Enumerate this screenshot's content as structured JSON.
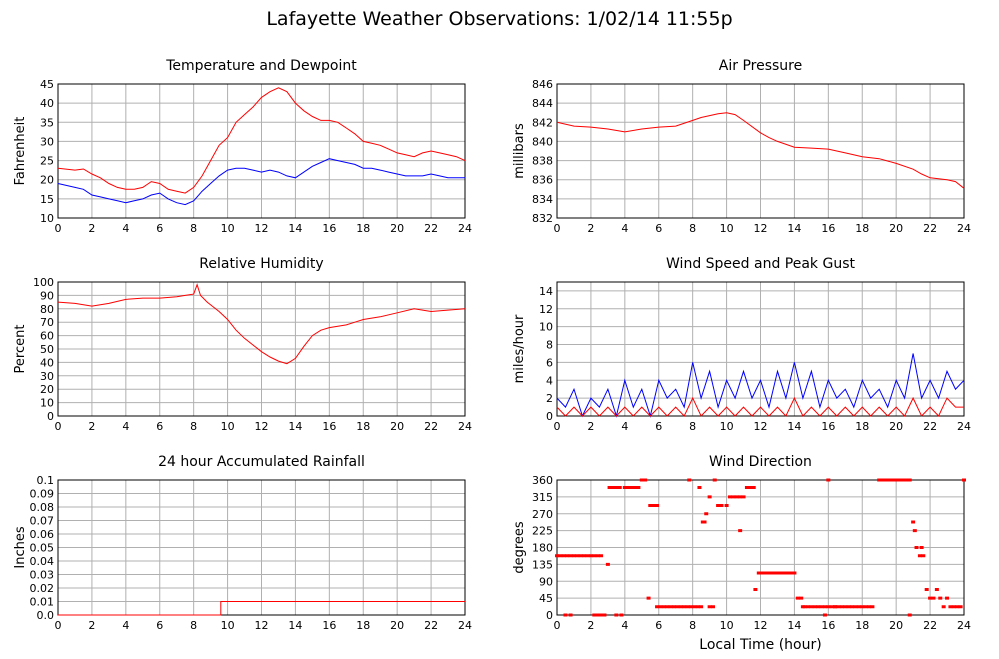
{
  "page": {
    "title": "Lafayette Weather Observations: 1/02/14 11:55p"
  },
  "colors": {
    "grid": "#b0b0b0",
    "red": "#ff0000",
    "blue": "#0000ff",
    "axis": "#000000"
  },
  "chart_data": [
    {
      "id": "temp",
      "type": "line",
      "title": "Temperature and Dewpoint",
      "xlabel": "",
      "ylabel": "Fahrenheit",
      "xlim": [
        0,
        24
      ],
      "ylim": [
        10,
        45
      ],
      "xticks": [
        0,
        2,
        4,
        6,
        8,
        10,
        12,
        14,
        16,
        18,
        20,
        22,
        24
      ],
      "yticks": [
        10,
        15,
        20,
        25,
        30,
        35,
        40,
        45
      ],
      "series": [
        {
          "color": "red",
          "x": [
            0,
            1,
            1.5,
            2,
            2.5,
            3,
            3.5,
            4,
            4.5,
            5,
            5.5,
            6,
            6.5,
            7,
            7.5,
            8,
            8.5,
            9,
            9.5,
            10,
            10.5,
            11,
            11.5,
            12,
            12.5,
            13,
            13.5,
            14,
            14.5,
            15,
            15.5,
            16,
            16.5,
            17,
            17.5,
            18,
            18.5,
            19,
            19.5,
            20,
            20.5,
            21,
            21.5,
            22,
            22.5,
            23,
            23.5,
            24
          ],
          "y": [
            23,
            22.5,
            22.8,
            21.5,
            20.5,
            19,
            18,
            17.5,
            17.5,
            18,
            19.5,
            19,
            17.5,
            17,
            16.5,
            18,
            21,
            25,
            29,
            31,
            35,
            37,
            39,
            41.5,
            43,
            44,
            43,
            40,
            38,
            36.5,
            35.5,
            35.5,
            35,
            33.5,
            32,
            30,
            29.5,
            29,
            28,
            27,
            26.5,
            26,
            27,
            27.5,
            27,
            26.5,
            26,
            25
          ]
        },
        {
          "color": "blue",
          "x": [
            0,
            1,
            1.5,
            2,
            2.5,
            3,
            3.5,
            4,
            4.5,
            5,
            5.5,
            6,
            6.5,
            7,
            7.5,
            8,
            8.5,
            9,
            9.5,
            10,
            10.5,
            11,
            11.5,
            12,
            12.5,
            13,
            13.5,
            14,
            14.5,
            15,
            15.5,
            16,
            16.5,
            17,
            17.5,
            18,
            18.5,
            19,
            19.5,
            20,
            20.5,
            21,
            21.5,
            22,
            22.5,
            23,
            23.5,
            24
          ],
          "y": [
            19,
            18,
            17.5,
            16,
            15.5,
            15,
            14.5,
            14,
            14.5,
            15,
            16,
            16.5,
            15,
            14,
            13.5,
            14.5,
            17,
            19,
            21,
            22.5,
            23,
            23,
            22.5,
            22,
            22.5,
            22,
            21,
            20.5,
            22,
            23.5,
            24.5,
            25.5,
            25,
            24.5,
            24,
            23,
            23,
            22.5,
            22,
            21.5,
            21,
            21,
            21,
            21.5,
            21,
            20.5,
            20.5,
            20.5
          ]
        }
      ]
    },
    {
      "id": "pressure",
      "type": "line",
      "title": "Air Pressure",
      "xlabel": "",
      "ylabel": "millibars",
      "xlim": [
        0,
        24
      ],
      "ylim": [
        832,
        846
      ],
      "xticks": [
        0,
        2,
        4,
        6,
        8,
        10,
        12,
        14,
        16,
        18,
        20,
        22,
        24
      ],
      "yticks": [
        832,
        834,
        836,
        838,
        840,
        842,
        844,
        846
      ],
      "series": [
        {
          "color": "red",
          "x": [
            0,
            1,
            2,
            3,
            4,
            5,
            6,
            7,
            8,
            8.5,
            9,
            9.5,
            10,
            10.5,
            11,
            12,
            12.5,
            13,
            14,
            15,
            16,
            17,
            18,
            19,
            20,
            21,
            21.5,
            22,
            23,
            23.5,
            24
          ],
          "y": [
            842,
            841.6,
            841.5,
            841.3,
            841,
            841.3,
            841.5,
            841.6,
            842.2,
            842.5,
            842.7,
            842.9,
            843,
            842.8,
            842.2,
            840.9,
            840.4,
            840,
            839.4,
            839.3,
            839.2,
            838.8,
            838.4,
            838.2,
            837.7,
            837.1,
            836.6,
            836.2,
            836,
            835.8,
            835.1
          ]
        }
      ]
    },
    {
      "id": "humidity",
      "type": "line",
      "title": "Relative Humidity",
      "xlabel": "",
      "ylabel": "Percent",
      "xlim": [
        0,
        24
      ],
      "ylim": [
        0,
        100
      ],
      "xticks": [
        0,
        2,
        4,
        6,
        8,
        10,
        12,
        14,
        16,
        18,
        20,
        22,
        24
      ],
      "yticks": [
        0,
        10,
        20,
        30,
        40,
        50,
        60,
        70,
        80,
        90,
        100
      ],
      "series": [
        {
          "color": "red",
          "x": [
            0,
            1,
            2,
            3,
            4,
            5,
            6,
            7,
            7.5,
            8,
            8.2,
            8.4,
            8.8,
            9.5,
            10,
            10.5,
            11,
            11.5,
            12,
            12.5,
            13,
            13.5,
            14,
            14.5,
            15,
            15.5,
            16,
            16.5,
            17,
            17.5,
            18,
            19,
            20,
            21,
            21.5,
            22,
            23,
            24
          ],
          "y": [
            85,
            84,
            82,
            84,
            87,
            88,
            88,
            89,
            90,
            91,
            98,
            90,
            85,
            78,
            72,
            64,
            58,
            53,
            48,
            44,
            41,
            39,
            43,
            52,
            60,
            64,
            66,
            67,
            68,
            70,
            72,
            74,
            77,
            80,
            79,
            78,
            79,
            80
          ]
        }
      ]
    },
    {
      "id": "wind",
      "type": "line",
      "title": "Wind Speed and Peak Gust",
      "xlabel": "",
      "ylabel": "miles/hour",
      "xlim": [
        0,
        24
      ],
      "ylim": [
        0,
        15
      ],
      "xticks": [
        0,
        2,
        4,
        6,
        8,
        10,
        12,
        14,
        16,
        18,
        20,
        22,
        24
      ],
      "yticks": [
        0,
        2,
        4,
        6,
        8,
        10,
        12,
        14
      ],
      "series": [
        {
          "color": "blue",
          "x": [
            0,
            0.5,
            1,
            1.5,
            2,
            2.5,
            3,
            3.5,
            4,
            4.5,
            5,
            5.5,
            6,
            6.5,
            7,
            7.5,
            8,
            8.5,
            9,
            9.5,
            10,
            10.5,
            11,
            11.5,
            12,
            12.5,
            13,
            13.5,
            14,
            14.5,
            15,
            15.5,
            16,
            16.5,
            17,
            17.5,
            18,
            18.5,
            19,
            19.5,
            20,
            20.5,
            21,
            21.5,
            22,
            22.5,
            23,
            23.5,
            24
          ],
          "y": [
            2,
            1,
            3,
            0,
            2,
            1,
            3,
            0,
            4,
            1,
            3,
            0,
            4,
            2,
            3,
            1,
            6,
            2,
            5,
            1,
            4,
            2,
            5,
            2,
            4,
            1,
            5,
            2,
            6,
            2,
            5,
            1,
            4,
            2,
            3,
            1,
            4,
            2,
            3,
            1,
            4,
            2,
            7,
            2,
            4,
            2,
            5,
            3,
            4
          ]
        },
        {
          "color": "red",
          "x": [
            0,
            0.5,
            1,
            1.5,
            2,
            2.5,
            3,
            3.5,
            4,
            4.5,
            5,
            5.5,
            6,
            6.5,
            7,
            7.5,
            8,
            8.5,
            9,
            9.5,
            10,
            10.5,
            11,
            11.5,
            12,
            12.5,
            13,
            13.5,
            14,
            14.5,
            15,
            15.5,
            16,
            16.5,
            17,
            17.5,
            18,
            18.5,
            19,
            19.5,
            20,
            20.5,
            21,
            21.5,
            22,
            22.5,
            23,
            23.5,
            24
          ],
          "y": [
            1,
            0,
            1,
            0,
            1,
            0,
            1,
            0,
            1,
            0,
            1,
            0,
            1,
            0,
            1,
            0,
            2,
            0,
            1,
            0,
            1,
            0,
            1,
            0,
            1,
            0,
            1,
            0,
            2,
            0,
            1,
            0,
            1,
            0,
            1,
            0,
            1,
            0,
            1,
            0,
            1,
            0,
            2,
            0,
            1,
            0,
            2,
            1,
            1
          ]
        }
      ]
    },
    {
      "id": "rain",
      "type": "line",
      "title": "24 hour Accumulated Rainfall",
      "xlabel": "",
      "ylabel": "Inches",
      "xlim": [
        0,
        24
      ],
      "ylim": [
        0,
        0.1
      ],
      "xticks": [
        0,
        2,
        4,
        6,
        8,
        10,
        12,
        14,
        16,
        18,
        20,
        22,
        24
      ],
      "yticks": [
        0.0,
        0.01,
        0.02,
        0.03,
        0.04,
        0.05,
        0.06,
        0.07,
        0.08,
        0.09,
        0.1
      ],
      "yticklabels": [
        "0.0",
        "0.01",
        "0.02",
        "0.03",
        "0.04",
        "0.05",
        "0.06",
        "0.07",
        "0.08",
        "0.09",
        "0.1"
      ],
      "series": [
        {
          "color": "red",
          "x": [
            0,
            9.6,
            9.6,
            24
          ],
          "y": [
            0,
            0,
            0.01,
            0.01
          ]
        }
      ]
    },
    {
      "id": "direction",
      "type": "scatter",
      "title": "Wind Direction",
      "xlabel": "Local Time (hour)",
      "ylabel": "degrees",
      "xlim": [
        0,
        24
      ],
      "ylim": [
        0,
        360
      ],
      "xticks": [
        0,
        2,
        4,
        6,
        8,
        10,
        12,
        14,
        16,
        18,
        20,
        22,
        24
      ],
      "yticks": [
        0,
        45,
        90,
        135,
        180,
        225,
        270,
        315,
        360
      ],
      "series": [
        {
          "color": "red",
          "x": [
            0,
            0.2,
            0.4,
            0.6,
            0.8,
            1,
            1.2,
            1.4,
            1.6,
            1.8,
            0.5,
            0.8,
            2,
            2.2,
            2.4,
            2.6,
            2.2,
            2.4,
            2.6,
            2.8,
            3,
            3.1,
            3.3,
            3.5,
            3.7,
            4,
            4.2,
            4.4,
            4.6,
            4.8,
            5,
            5.2,
            5.4,
            3.5,
            3.8,
            5.5,
            5.7,
            5.9,
            5.9,
            6.1,
            6.3,
            6.5,
            6.7,
            6.9,
            7.1,
            7.3,
            7.5,
            7.7,
            7.9,
            8.1,
            8.3,
            8.5,
            8.6,
            8.7,
            8.8,
            9,
            9.2,
            9.3,
            9.5,
            9.7,
            10,
            10.2,
            10.4,
            10.6,
            10.8,
            11,
            10.8,
            11.2,
            11.4,
            11.6,
            11.7,
            11.9,
            12.1,
            12.3,
            12.5,
            12.7,
            12.9,
            13.1,
            13.3,
            13.5,
            13.7,
            13.9,
            14,
            14.2,
            14.4,
            14.5,
            14.6,
            14.8,
            15,
            15.2,
            15.4,
            15.6,
            15.8,
            16,
            16.2,
            16.4,
            16.6,
            16.8,
            17,
            17.2,
            17.4,
            17.6,
            17.8,
            18,
            18.2,
            18.4,
            18.6,
            19,
            19.2,
            19.4,
            19.6,
            19.8,
            20,
            20.2,
            20.4,
            20.6,
            20.8,
            21,
            21.1,
            21.2,
            21.4,
            21.5,
            21.6,
            21.8,
            22,
            22.2,
            22.4,
            22.6,
            22.8,
            23,
            23.2,
            23.4,
            23.6,
            23.8,
            24,
            20.8,
            9,
            16,
            15.8,
            7.8,
            8.4,
            16.4
          ],
          "y": [
            158,
            158,
            158,
            158,
            158,
            158,
            158,
            158,
            158,
            158,
            0,
            0,
            158,
            158,
            158,
            158,
            0,
            0,
            0,
            0,
            135,
            340,
            340,
            340,
            340,
            340,
            340,
            340,
            340,
            340,
            360,
            360,
            45,
            0,
            0,
            292,
            292,
            292,
            22,
            22,
            22,
            22,
            22,
            22,
            22,
            22,
            22,
            22,
            22,
            22,
            22,
            22,
            248,
            248,
            270,
            315,
            22,
            360,
            292,
            292,
            292,
            315,
            315,
            315,
            315,
            315,
            225,
            340,
            340,
            340,
            68,
            112,
            112,
            112,
            112,
            112,
            112,
            112,
            112,
            112,
            112,
            112,
            112,
            45,
            45,
            22,
            22,
            22,
            22,
            22,
            22,
            22,
            22,
            22,
            22,
            22,
            22,
            22,
            22,
            22,
            22,
            22,
            22,
            22,
            22,
            22,
            22,
            360,
            360,
            360,
            360,
            360,
            360,
            360,
            360,
            360,
            360,
            248,
            225,
            180,
            158,
            180,
            158,
            68,
            45,
            45,
            68,
            45,
            22,
            45,
            22,
            22,
            22,
            22,
            360,
            0,
            22,
            360,
            0,
            360,
            340,
            22
          ]
        }
      ]
    }
  ]
}
